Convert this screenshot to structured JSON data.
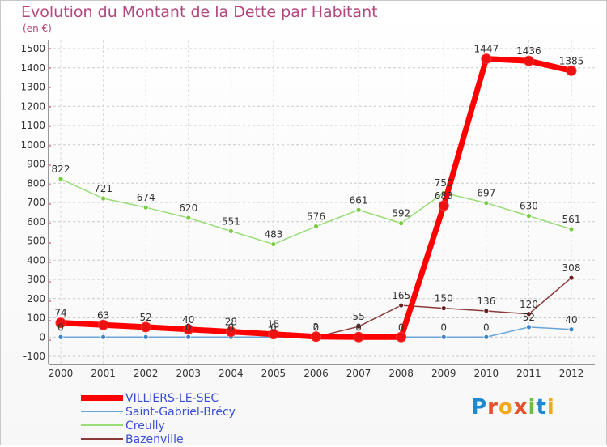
{
  "header": {
    "title": "Evolution du Montant de la Dette par Habitant",
    "subtitle": "(en €)"
  },
  "logo": {
    "text": "Proxiti",
    "letters": [
      {
        "char": "P",
        "color": "#1e88d0"
      },
      {
        "char": "r",
        "color": "#e8502a"
      },
      {
        "char": "o",
        "color": "#f4a81c"
      },
      {
        "char": "x",
        "color": "#e8502a"
      },
      {
        "char": "i",
        "color": "#6cbd45"
      },
      {
        "char": "t",
        "color": "#1e88d0"
      },
      {
        "char": "i",
        "color": "#f4a81c"
      }
    ]
  },
  "chart_data": {
    "type": "line",
    "title": "Evolution du Montant de la Dette par Habitant",
    "subtitle": "(en €)",
    "xlabel": "",
    "ylabel": "",
    "x": [
      "2000",
      "2001",
      "2002",
      "2003",
      "2004",
      "2005",
      "2006",
      "2007",
      "2008",
      "2009",
      "2010",
      "2011",
      "2012"
    ],
    "ylim": [
      -100,
      1500
    ],
    "yticks": [
      "-100",
      "0",
      "100",
      "200",
      "300",
      "400",
      "500",
      "600",
      "700",
      "800",
      "900",
      "1000",
      "1100",
      "1200",
      "1300",
      "1400",
      "1500"
    ],
    "grid": "horizontal dashed",
    "legend_position": "bottom-left",
    "series": [
      {
        "name": "VILLIERS-LE-SEC",
        "color": "#ff0000",
        "marker_color": "#ee1111",
        "line_width": 7,
        "marker_radius": 6,
        "values": [
          74,
          63,
          52,
          40,
          28,
          15,
          2,
          0,
          0,
          683,
          1447,
          1436,
          1385
        ],
        "labels": [
          "74",
          "63",
          "52",
          "40",
          "28",
          "15",
          "2",
          "0",
          "0",
          "683",
          "1447",
          "1436",
          "1385"
        ]
      },
      {
        "name": "Saint-Gabriel-Brécy",
        "color": "#6aa3d6",
        "marker_color": "#3a86cc",
        "line_width": 1.5,
        "marker_radius": 3,
        "values": [
          0,
          0,
          0,
          0,
          0,
          0,
          0,
          0,
          0,
          0,
          0,
          52,
          40
        ],
        "labels": [
          "0",
          "",
          "",
          "0",
          "0",
          "0",
          "0",
          "",
          "",
          "0",
          "0",
          "52",
          "40"
        ]
      },
      {
        "name": "Creully",
        "color": "#99dd77",
        "marker_color": "#77cc44",
        "line_width": 1.5,
        "marker_radius": 3,
        "values": [
          822,
          721,
          674,
          620,
          551,
          483,
          576,
          661,
          592,
          750,
          697,
          630,
          561
        ],
        "labels": [
          "822",
          "721",
          "674",
          "620",
          "551",
          "483",
          "576",
          "661",
          "592",
          "750",
          "697",
          "630",
          "561"
        ]
      },
      {
        "name": "Bazenville",
        "color": "#8b3a3a",
        "marker_color": "#6a1f1f",
        "line_width": 1.5,
        "marker_radius": 3,
        "values": [
          0,
          0,
          0,
          0,
          0,
          0,
          0,
          55,
          165,
          150,
          136,
          120,
          308
        ],
        "labels": [
          "",
          "",
          "",
          "",
          "",
          "",
          "",
          "55",
          "165",
          "150",
          "136",
          "120",
          "308"
        ]
      }
    ]
  }
}
